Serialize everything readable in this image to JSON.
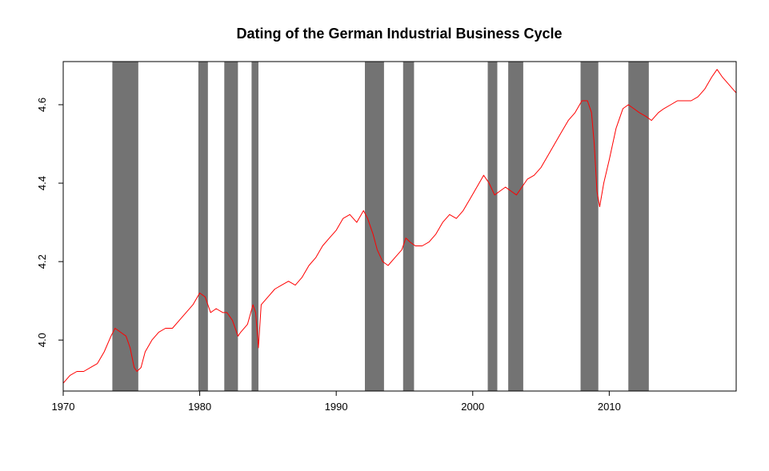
{
  "chart_data": {
    "type": "line",
    "title": "Dating of the German Industrial Business Cycle",
    "xlabel": "",
    "ylabel": "",
    "xlim": [
      1970,
      2019.3
    ],
    "ylim": [
      3.87,
      4.71
    ],
    "x_ticks": [
      1970,
      1980,
      1990,
      2000,
      2010
    ],
    "y_ticks": [
      4.0,
      4.2,
      4.4,
      4.6
    ],
    "colors": {
      "line": "#ff0000",
      "recession": "#737373",
      "axis": "#000000"
    },
    "recessions": [
      [
        1973.6,
        1975.5
      ],
      [
        1979.9,
        1980.6
      ],
      [
        1981.8,
        1982.8
      ],
      [
        1983.8,
        1984.3
      ],
      [
        1992.1,
        1993.5
      ],
      [
        1994.9,
        1995.7
      ],
      [
        2001.1,
        2001.8
      ],
      [
        2002.6,
        2003.7
      ],
      [
        2007.9,
        2009.2
      ],
      [
        2011.4,
        2012.9
      ]
    ],
    "series": [
      {
        "x": [
          1970.0,
          1970.5,
          1971.0,
          1971.5,
          1972.0,
          1972.5,
          1973.0,
          1973.5,
          1973.8,
          1974.2,
          1974.6,
          1974.9,
          1975.2,
          1975.4,
          1975.7,
          1976.0,
          1976.5,
          1977.0,
          1977.5,
          1978.0,
          1978.5,
          1979.0,
          1979.5,
          1980.0,
          1980.4,
          1980.8,
          1981.2,
          1981.7,
          1982.0,
          1982.4,
          1982.8,
          1983.0,
          1983.5,
          1983.9,
          1984.1,
          1984.3,
          1984.5,
          1985.0,
          1985.5,
          1986.0,
          1986.5,
          1987.0,
          1987.5,
          1988.0,
          1988.5,
          1989.0,
          1989.5,
          1990.0,
          1990.5,
          1991.0,
          1991.5,
          1992.0,
          1992.3,
          1992.7,
          1993.0,
          1993.4,
          1993.8,
          1994.3,
          1994.8,
          1995.1,
          1995.4,
          1995.8,
          1996.3,
          1996.8,
          1997.3,
          1997.8,
          1998.3,
          1998.8,
          1999.3,
          1999.8,
          2000.3,
          2000.8,
          2001.2,
          2001.6,
          2002.0,
          2002.4,
          2002.8,
          2003.2,
          2003.6,
          2004.0,
          2004.5,
          2005.0,
          2005.5,
          2006.0,
          2006.5,
          2007.0,
          2007.5,
          2008.0,
          2008.4,
          2008.7,
          2008.9,
          2009.1,
          2009.3,
          2009.6,
          2010.0,
          2010.5,
          2011.0,
          2011.4,
          2011.8,
          2012.2,
          2012.7,
          2013.1,
          2013.6,
          2014.0,
          2014.5,
          2015.0,
          2015.5,
          2016.0,
          2016.5,
          2017.0,
          2017.5,
          2017.9,
          2018.3,
          2018.8,
          2019.3
        ],
        "y": [
          3.89,
          3.91,
          3.92,
          3.92,
          3.93,
          3.94,
          3.97,
          4.01,
          4.03,
          4.02,
          4.01,
          3.98,
          3.93,
          3.92,
          3.93,
          3.97,
          4.0,
          4.02,
          4.03,
          4.03,
          4.05,
          4.07,
          4.09,
          4.12,
          4.11,
          4.07,
          4.08,
          4.07,
          4.07,
          4.05,
          4.01,
          4.02,
          4.04,
          4.09,
          4.07,
          3.98,
          4.09,
          4.11,
          4.13,
          4.14,
          4.15,
          4.14,
          4.16,
          4.19,
          4.21,
          4.24,
          4.26,
          4.28,
          4.31,
          4.32,
          4.3,
          4.33,
          4.31,
          4.27,
          4.23,
          4.2,
          4.19,
          4.21,
          4.23,
          4.26,
          4.25,
          4.24,
          4.24,
          4.25,
          4.27,
          4.3,
          4.32,
          4.31,
          4.33,
          4.36,
          4.39,
          4.42,
          4.4,
          4.37,
          4.38,
          4.39,
          4.38,
          4.37,
          4.39,
          4.41,
          4.42,
          4.44,
          4.47,
          4.5,
          4.53,
          4.56,
          4.58,
          4.61,
          4.61,
          4.58,
          4.5,
          4.38,
          4.34,
          4.4,
          4.46,
          4.54,
          4.59,
          4.6,
          4.59,
          4.58,
          4.57,
          4.56,
          4.58,
          4.59,
          4.6,
          4.61,
          4.61,
          4.61,
          4.62,
          4.64,
          4.67,
          4.69,
          4.67,
          4.65,
          4.63
        ]
      }
    ]
  }
}
